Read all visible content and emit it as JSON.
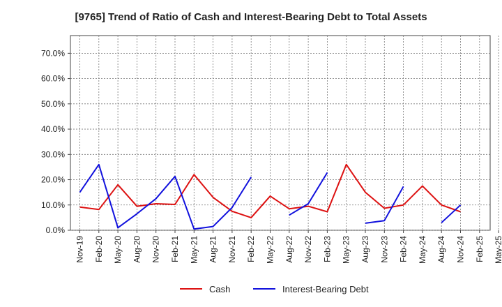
{
  "chart_data": {
    "type": "line",
    "title": "[9765]  Trend of Ratio of Cash and Interest-Bearing Debt to Total Assets",
    "xlabel": "",
    "ylabel": "",
    "ylim": [
      0,
      0.77
    ],
    "yticks": [
      0,
      0.1,
      0.2,
      0.3,
      0.4,
      0.5,
      0.6,
      0.7
    ],
    "ytick_labels": [
      "0.0%",
      "10.0%",
      "20.0%",
      "30.0%",
      "40.0%",
      "50.0%",
      "60.0%",
      "70.0%"
    ],
    "x_tick_labels": [
      "Nov-19",
      "Feb-20",
      "May-20",
      "Aug-20",
      "Nov-20",
      "Feb-21",
      "May-21",
      "Aug-21",
      "Nov-21",
      "Feb-22",
      "May-22",
      "Aug-22",
      "Nov-22",
      "Feb-23",
      "May-23",
      "Aug-23",
      "Nov-23",
      "Feb-24",
      "May-24",
      "Aug-24",
      "Nov-24",
      "Feb-25",
      "May-25"
    ],
    "grid": true,
    "legend_position": "bottom-center",
    "series": [
      {
        "name": "Cash",
        "color": "#dd1111",
        "values": [
          0.092,
          0.082,
          0.18,
          0.095,
          0.105,
          0.102,
          0.22,
          0.13,
          0.075,
          0.05,
          0.135,
          0.085,
          0.095,
          0.073,
          0.26,
          0.15,
          0.087,
          0.1,
          0.175,
          0.1,
          0.073,
          null,
          null
        ]
      },
      {
        "name": "Interest-Bearing Debt",
        "color": "#1111dd",
        "values": [
          0.15,
          0.26,
          0.01,
          0.065,
          0.125,
          0.213,
          0.005,
          0.015,
          0.09,
          0.21,
          null,
          0.06,
          0.105,
          0.228,
          null,
          0.028,
          0.038,
          0.173,
          null,
          0.03,
          0.1,
          null,
          null
        ]
      }
    ]
  }
}
